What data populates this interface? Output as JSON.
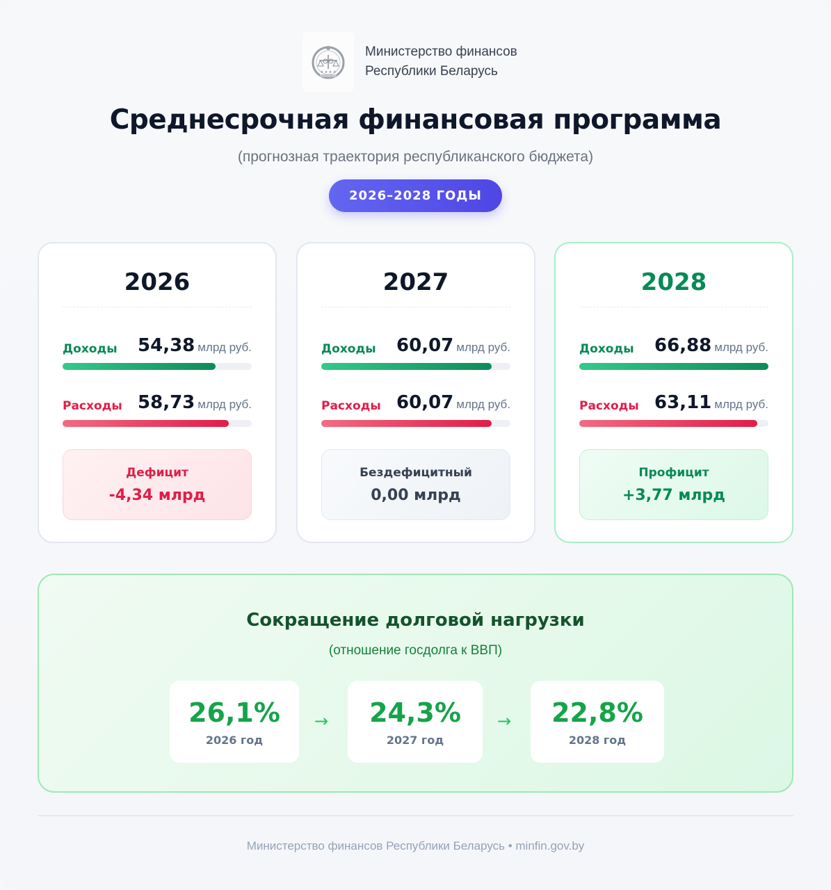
{
  "header": {
    "logo_icon": "ministry-emblem-icon",
    "org_line1": "Министерство финансов",
    "org_line2": "Республики Беларусь",
    "title": "Среднесрочная финансовая программа",
    "subtitle": "(прогнозная траектория республиканского бюджета)",
    "period": "2026–2028 ГОДЫ"
  },
  "colors": {
    "income": "#078a55",
    "expense": "#e11d48",
    "accent": "#4f46e5",
    "debt": "#16a34a"
  },
  "years": [
    {
      "year": "2026",
      "income_label": "Доходы",
      "income_value": "54,38",
      "income_unit": "млрд руб.",
      "income_bar_pct": 81,
      "expense_label": "Расходы",
      "expense_value": "58,73",
      "expense_unit": "млрд руб.",
      "expense_bar_pct": 88,
      "balance_label": "Дефицит",
      "balance_value": "-4,34 млрд",
      "balance_type": "deficit"
    },
    {
      "year": "2027",
      "income_label": "Доходы",
      "income_value": "60,07",
      "income_unit": "млрд руб.",
      "income_bar_pct": 90,
      "expense_label": "Расходы",
      "expense_value": "60,07",
      "expense_unit": "млрд руб.",
      "expense_bar_pct": 90,
      "balance_label": "Бездефицитный",
      "balance_value": "0,00 млрд",
      "balance_type": "neutral"
    },
    {
      "year": "2028",
      "income_label": "Доходы",
      "income_value": "66,88",
      "income_unit": "млрд руб.",
      "income_bar_pct": 100,
      "expense_label": "Расходы",
      "expense_value": "63,11",
      "expense_unit": "млрд руб.",
      "expense_bar_pct": 94,
      "balance_label": "Профицит",
      "balance_value": "+3,77 млрд",
      "balance_type": "surplus"
    }
  ],
  "debt": {
    "title": "Сокращение долговой нагрузки",
    "subtitle": "(отношение госдолга к ВВП)",
    "arrow_icon": "→",
    "items": [
      {
        "value": "26,1%",
        "label": "2026 год"
      },
      {
        "value": "24,3%",
        "label": "2027 год"
      },
      {
        "value": "22,8%",
        "label": "2028 год"
      }
    ]
  },
  "footer": {
    "text": "Министерство финансов Республики Беларусь • minfin.gov.by"
  }
}
